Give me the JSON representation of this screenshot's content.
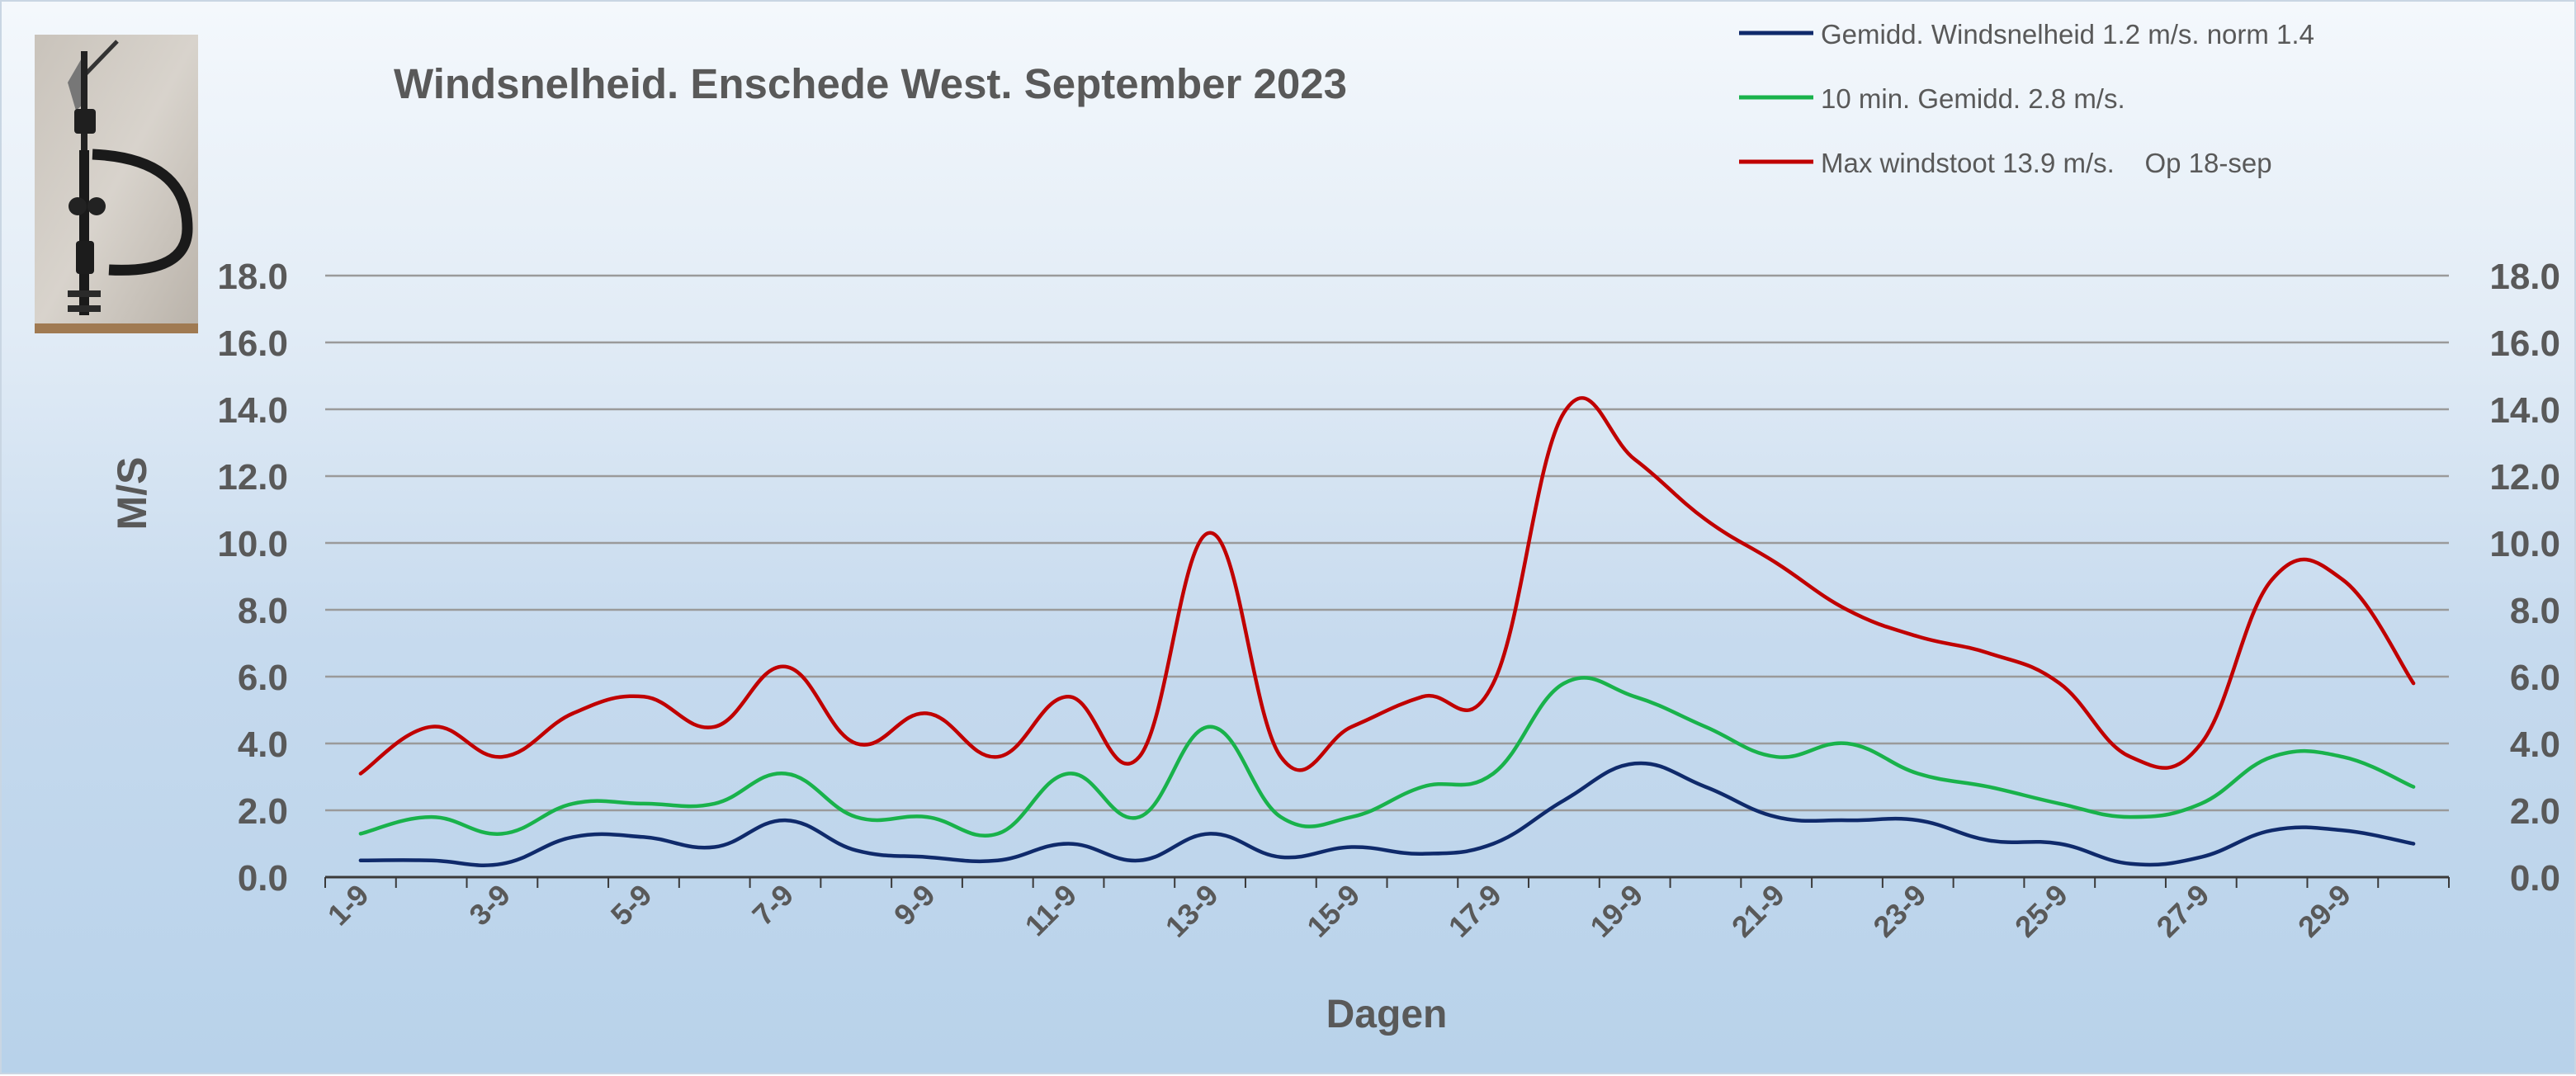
{
  "chart_data": {
    "type": "line",
    "title": "Windsnelheid. Enschede West. September 2023",
    "xlabel": "Dagen",
    "ylabel": "M/S",
    "ylim": [
      0,
      18
    ],
    "y_ticks": [
      "0.0",
      "2.0",
      "4.0",
      "6.0",
      "8.0",
      "10.0",
      "12.0",
      "14.0",
      "16.0",
      "18.0"
    ],
    "y_tick_values": [
      0,
      2,
      4,
      6,
      8,
      10,
      12,
      14,
      16,
      18
    ],
    "categories": [
      "1-9",
      "2-9",
      "3-9",
      "4-9",
      "5-9",
      "6-9",
      "7-9",
      "8-9",
      "9-9",
      "10-9",
      "11-9",
      "12-9",
      "13-9",
      "14-9",
      "15-9",
      "16-9",
      "17-9",
      "18-9",
      "19-9",
      "20-9",
      "21-9",
      "22-9",
      "23-9",
      "24-9",
      "25-9",
      "26-9",
      "27-9",
      "28-9",
      "29-9",
      "30-9"
    ],
    "tick_labels": [
      "1-9",
      "3-9",
      "5-9",
      "7-9",
      "9-9",
      "11-9",
      "13-9",
      "15-9",
      "17-9",
      "19-9",
      "21-9",
      "23-9",
      "25-9",
      "27-9",
      "29-9"
    ],
    "grid": true,
    "legend_position": "top-right",
    "series": [
      {
        "name": "Gemidd. Windsnelheid 1.2 m/s. norm 1.4",
        "color": "#0f2a6b",
        "values": [
          0.5,
          0.5,
          0.4,
          1.2,
          1.2,
          0.9,
          1.7,
          0.8,
          0.6,
          0.5,
          1.0,
          0.5,
          1.3,
          0.6,
          0.9,
          0.7,
          1.0,
          2.3,
          3.4,
          2.7,
          1.8,
          1.7,
          1.7,
          1.1,
          1.0,
          0.4,
          0.6,
          1.4,
          1.4,
          1.0
        ]
      },
      {
        "name": "10 min. Gemidd. 2.8 m/s.",
        "color": "#19b24b",
        "values": [
          1.3,
          1.8,
          1.3,
          2.2,
          2.2,
          2.2,
          3.1,
          1.8,
          1.8,
          1.3,
          3.1,
          1.8,
          4.5,
          1.8,
          1.8,
          2.7,
          3.1,
          5.8,
          5.4,
          4.5,
          3.6,
          4.0,
          3.1,
          2.7,
          2.2,
          1.8,
          2.2,
          3.6,
          3.6,
          2.7
        ]
      },
      {
        "name": "Max windstoot 13.9 m/s.    Op 18-sep",
        "color": "#c00000",
        "values": [
          3.1,
          4.5,
          3.6,
          4.9,
          5.4,
          4.5,
          6.3,
          4.0,
          4.9,
          3.6,
          5.4,
          3.6,
          10.3,
          3.6,
          4.5,
          5.4,
          5.8,
          13.9,
          12.5,
          10.7,
          9.4,
          8.0,
          7.2,
          6.7,
          5.8,
          3.6,
          4.0,
          8.9,
          8.9,
          5.8
        ]
      }
    ]
  }
}
